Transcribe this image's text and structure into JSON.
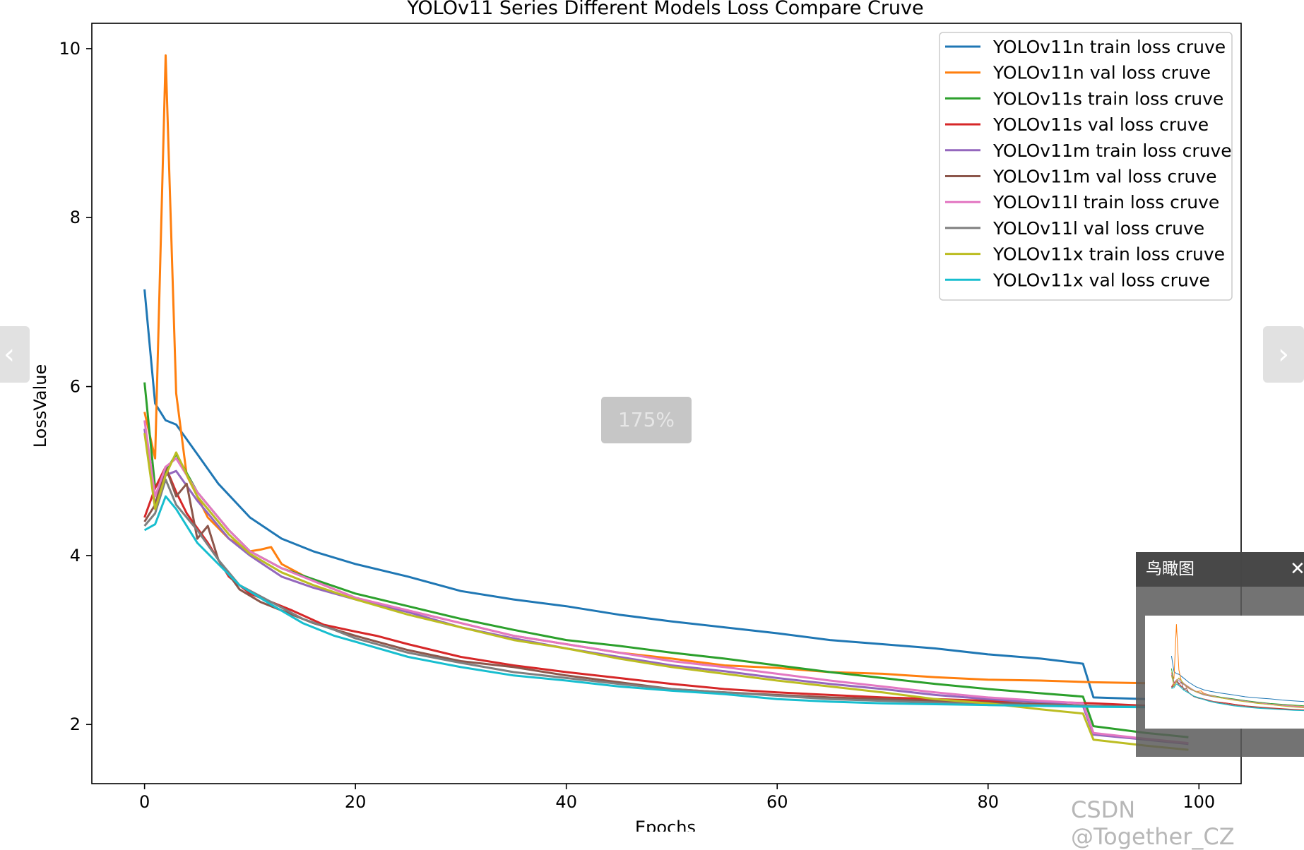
{
  "viewer": {
    "prev_icon": "chevron-left-icon",
    "next_icon": "chevron-right-icon",
    "zoom_label": "175%",
    "birdview_title": "鸟瞰图",
    "close_icon": "close-icon",
    "watermark": "CSDN @Together_CZ"
  },
  "chart_data": {
    "type": "line",
    "title": "YOLOv11 Series Different Models Loss Compare Cruve",
    "xlabel": "Epochs",
    "ylabel": "LossValue",
    "xlim": [
      -5,
      104
    ],
    "ylim": [
      1.3,
      10.3
    ],
    "xticks": [
      0,
      20,
      40,
      60,
      80,
      100
    ],
    "yticks": [
      2,
      4,
      6,
      8,
      10
    ],
    "grid": false,
    "legend_position": "top-right",
    "series": [
      {
        "name": "YOLOv11n train loss cruve",
        "color": "#1f77b4",
        "points": [
          [
            0,
            7.15
          ],
          [
            1,
            5.8
          ],
          [
            2,
            5.6
          ],
          [
            3,
            5.55
          ],
          [
            5,
            5.2
          ],
          [
            7,
            4.85
          ],
          [
            10,
            4.45
          ],
          [
            13,
            4.2
          ],
          [
            16,
            4.05
          ],
          [
            20,
            3.9
          ],
          [
            25,
            3.75
          ],
          [
            30,
            3.58
          ],
          [
            35,
            3.48
          ],
          [
            40,
            3.4
          ],
          [
            45,
            3.3
          ],
          [
            50,
            3.22
          ],
          [
            55,
            3.15
          ],
          [
            60,
            3.08
          ],
          [
            65,
            3.0
          ],
          [
            70,
            2.95
          ],
          [
            75,
            2.9
          ],
          [
            80,
            2.83
          ],
          [
            85,
            2.78
          ],
          [
            89,
            2.72
          ],
          [
            90,
            2.32
          ],
          [
            95,
            2.3
          ],
          [
            99,
            2.28
          ]
        ]
      },
      {
        "name": "YOLOv11n val loss cruve",
        "color": "#ff7f0e",
        "points": [
          [
            0,
            5.7
          ],
          [
            1,
            5.15
          ],
          [
            2,
            9.92
          ],
          [
            3,
            5.92
          ],
          [
            4,
            4.95
          ],
          [
            6,
            4.45
          ],
          [
            8,
            4.2
          ],
          [
            10,
            4.05
          ],
          [
            11,
            4.07
          ],
          [
            12,
            4.1
          ],
          [
            13,
            3.9
          ],
          [
            16,
            3.7
          ],
          [
            20,
            3.5
          ],
          [
            25,
            3.35
          ],
          [
            30,
            3.2
          ],
          [
            35,
            3.05
          ],
          [
            40,
            2.95
          ],
          [
            45,
            2.85
          ],
          [
            50,
            2.78
          ],
          [
            55,
            2.7
          ],
          [
            60,
            2.67
          ],
          [
            65,
            2.62
          ],
          [
            70,
            2.6
          ],
          [
            75,
            2.56
          ],
          [
            80,
            2.53
          ],
          [
            85,
            2.52
          ],
          [
            90,
            2.5
          ],
          [
            99,
            2.48
          ]
        ]
      },
      {
        "name": "YOLOv11s train loss cruve",
        "color": "#2ca02c",
        "points": [
          [
            0,
            6.05
          ],
          [
            1,
            4.8
          ],
          [
            2,
            5.0
          ],
          [
            3,
            5.2
          ],
          [
            5,
            4.75
          ],
          [
            8,
            4.3
          ],
          [
            10,
            4.05
          ],
          [
            13,
            3.85
          ],
          [
            16,
            3.72
          ],
          [
            20,
            3.55
          ],
          [
            25,
            3.4
          ],
          [
            30,
            3.25
          ],
          [
            35,
            3.12
          ],
          [
            40,
            3.0
          ],
          [
            45,
            2.93
          ],
          [
            50,
            2.85
          ],
          [
            55,
            2.78
          ],
          [
            60,
            2.7
          ],
          [
            65,
            2.62
          ],
          [
            70,
            2.55
          ],
          [
            75,
            2.48
          ],
          [
            80,
            2.42
          ],
          [
            85,
            2.37
          ],
          [
            89,
            2.33
          ],
          [
            90,
            1.98
          ],
          [
            95,
            1.9
          ],
          [
            99,
            1.85
          ]
        ]
      },
      {
        "name": "YOLOv11s val loss cruve",
        "color": "#d62728",
        "points": [
          [
            0,
            4.45
          ],
          [
            1,
            4.8
          ],
          [
            2,
            5.05
          ],
          [
            3,
            4.75
          ],
          [
            4,
            4.5
          ],
          [
            6,
            4.15
          ],
          [
            8,
            3.75
          ],
          [
            10,
            3.55
          ],
          [
            12,
            3.45
          ],
          [
            14,
            3.35
          ],
          [
            17,
            3.18
          ],
          [
            20,
            3.1
          ],
          [
            22,
            3.05
          ],
          [
            25,
            2.95
          ],
          [
            30,
            2.8
          ],
          [
            35,
            2.7
          ],
          [
            40,
            2.62
          ],
          [
            45,
            2.55
          ],
          [
            50,
            2.48
          ],
          [
            55,
            2.42
          ],
          [
            60,
            2.38
          ],
          [
            65,
            2.35
          ],
          [
            70,
            2.32
          ],
          [
            75,
            2.3
          ],
          [
            80,
            2.28
          ],
          [
            85,
            2.27
          ],
          [
            90,
            2.25
          ],
          [
            99,
            2.2
          ]
        ]
      },
      {
        "name": "YOLOv11m train loss cruve",
        "color": "#9467bd",
        "points": [
          [
            0,
            5.5
          ],
          [
            1,
            4.6
          ],
          [
            2,
            4.95
          ],
          [
            3,
            5.0
          ],
          [
            5,
            4.65
          ],
          [
            8,
            4.2
          ],
          [
            10,
            4.0
          ],
          [
            13,
            3.75
          ],
          [
            16,
            3.62
          ],
          [
            20,
            3.48
          ],
          [
            25,
            3.33
          ],
          [
            30,
            3.15
          ],
          [
            35,
            3.02
          ],
          [
            40,
            2.9
          ],
          [
            45,
            2.8
          ],
          [
            50,
            2.7
          ],
          [
            55,
            2.63
          ],
          [
            60,
            2.55
          ],
          [
            65,
            2.48
          ],
          [
            70,
            2.42
          ],
          [
            75,
            2.35
          ],
          [
            80,
            2.3
          ],
          [
            85,
            2.26
          ],
          [
            89,
            2.22
          ],
          [
            90,
            1.88
          ],
          [
            95,
            1.82
          ],
          [
            99,
            1.77
          ]
        ]
      },
      {
        "name": "YOLOv11m val loss cruve",
        "color": "#8c564b",
        "points": [
          [
            0,
            4.4
          ],
          [
            1,
            4.6
          ],
          [
            2,
            5.05
          ],
          [
            3,
            4.7
          ],
          [
            4,
            4.85
          ],
          [
            5,
            4.2
          ],
          [
            6,
            4.35
          ],
          [
            7,
            3.95
          ],
          [
            9,
            3.6
          ],
          [
            11,
            3.45
          ],
          [
            13,
            3.35
          ],
          [
            16,
            3.2
          ],
          [
            20,
            3.05
          ],
          [
            25,
            2.88
          ],
          [
            30,
            2.75
          ],
          [
            35,
            2.68
          ],
          [
            40,
            2.58
          ],
          [
            45,
            2.5
          ],
          [
            50,
            2.42
          ],
          [
            55,
            2.38
          ],
          [
            60,
            2.35
          ],
          [
            65,
            2.32
          ],
          [
            70,
            2.3
          ],
          [
            75,
            2.28
          ],
          [
            80,
            2.26
          ],
          [
            85,
            2.24
          ],
          [
            90,
            2.22
          ],
          [
            99,
            2.2
          ]
        ]
      },
      {
        "name": "YOLOv11l train loss cruve",
        "color": "#e377c2",
        "points": [
          [
            0,
            5.6
          ],
          [
            1,
            4.7
          ],
          [
            2,
            5.05
          ],
          [
            3,
            5.15
          ],
          [
            5,
            4.75
          ],
          [
            8,
            4.3
          ],
          [
            10,
            4.05
          ],
          [
            13,
            3.85
          ],
          [
            16,
            3.7
          ],
          [
            20,
            3.5
          ],
          [
            25,
            3.35
          ],
          [
            30,
            3.2
          ],
          [
            35,
            3.05
          ],
          [
            40,
            2.95
          ],
          [
            45,
            2.85
          ],
          [
            50,
            2.75
          ],
          [
            55,
            2.68
          ],
          [
            60,
            2.6
          ],
          [
            65,
            2.52
          ],
          [
            70,
            2.45
          ],
          [
            75,
            2.38
          ],
          [
            80,
            2.32
          ],
          [
            85,
            2.28
          ],
          [
            89,
            2.25
          ],
          [
            90,
            1.9
          ],
          [
            95,
            1.83
          ],
          [
            99,
            1.78
          ]
        ]
      },
      {
        "name": "YOLOv11l val loss cruve",
        "color": "#7f7f7f",
        "points": [
          [
            0,
            4.35
          ],
          [
            1,
            4.5
          ],
          [
            2,
            4.9
          ],
          [
            3,
            4.6
          ],
          [
            5,
            4.3
          ],
          [
            7,
            3.95
          ],
          [
            9,
            3.65
          ],
          [
            12,
            3.45
          ],
          [
            15,
            3.25
          ],
          [
            18,
            3.12
          ],
          [
            20,
            3.02
          ],
          [
            25,
            2.85
          ],
          [
            30,
            2.73
          ],
          [
            35,
            2.62
          ],
          [
            40,
            2.55
          ],
          [
            45,
            2.48
          ],
          [
            50,
            2.42
          ],
          [
            55,
            2.38
          ],
          [
            60,
            2.34
          ],
          [
            65,
            2.3
          ],
          [
            70,
            2.28
          ],
          [
            75,
            2.26
          ],
          [
            80,
            2.24
          ],
          [
            85,
            2.23
          ],
          [
            90,
            2.22
          ],
          [
            99,
            2.2
          ]
        ]
      },
      {
        "name": "YOLOv11x train loss cruve",
        "color": "#bcbd22",
        "points": [
          [
            0,
            5.45
          ],
          [
            1,
            4.55
          ],
          [
            2,
            4.95
          ],
          [
            3,
            5.22
          ],
          [
            5,
            4.7
          ],
          [
            8,
            4.25
          ],
          [
            10,
            4.02
          ],
          [
            13,
            3.8
          ],
          [
            16,
            3.65
          ],
          [
            20,
            3.48
          ],
          [
            25,
            3.3
          ],
          [
            30,
            3.15
          ],
          [
            35,
            3.0
          ],
          [
            40,
            2.9
          ],
          [
            45,
            2.78
          ],
          [
            50,
            2.68
          ],
          [
            55,
            2.6
          ],
          [
            60,
            2.52
          ],
          [
            65,
            2.45
          ],
          [
            70,
            2.38
          ],
          [
            75,
            2.3
          ],
          [
            80,
            2.25
          ],
          [
            85,
            2.18
          ],
          [
            89,
            2.13
          ],
          [
            90,
            1.82
          ],
          [
            95,
            1.75
          ],
          [
            99,
            1.7
          ]
        ]
      },
      {
        "name": "YOLOv11x val loss cruve",
        "color": "#17becf",
        "points": [
          [
            0,
            4.3
          ],
          [
            1,
            4.37
          ],
          [
            2,
            4.7
          ],
          [
            3,
            4.55
          ],
          [
            5,
            4.15
          ],
          [
            7,
            3.9
          ],
          [
            9,
            3.65
          ],
          [
            12,
            3.42
          ],
          [
            15,
            3.2
          ],
          [
            18,
            3.05
          ],
          [
            20,
            2.98
          ],
          [
            25,
            2.8
          ],
          [
            30,
            2.68
          ],
          [
            35,
            2.58
          ],
          [
            40,
            2.52
          ],
          [
            45,
            2.45
          ],
          [
            50,
            2.4
          ],
          [
            55,
            2.36
          ],
          [
            60,
            2.3
          ],
          [
            65,
            2.27
          ],
          [
            70,
            2.25
          ],
          [
            75,
            2.24
          ],
          [
            80,
            2.23
          ],
          [
            85,
            2.22
          ],
          [
            90,
            2.21
          ],
          [
            99,
            2.2
          ]
        ]
      }
    ]
  }
}
